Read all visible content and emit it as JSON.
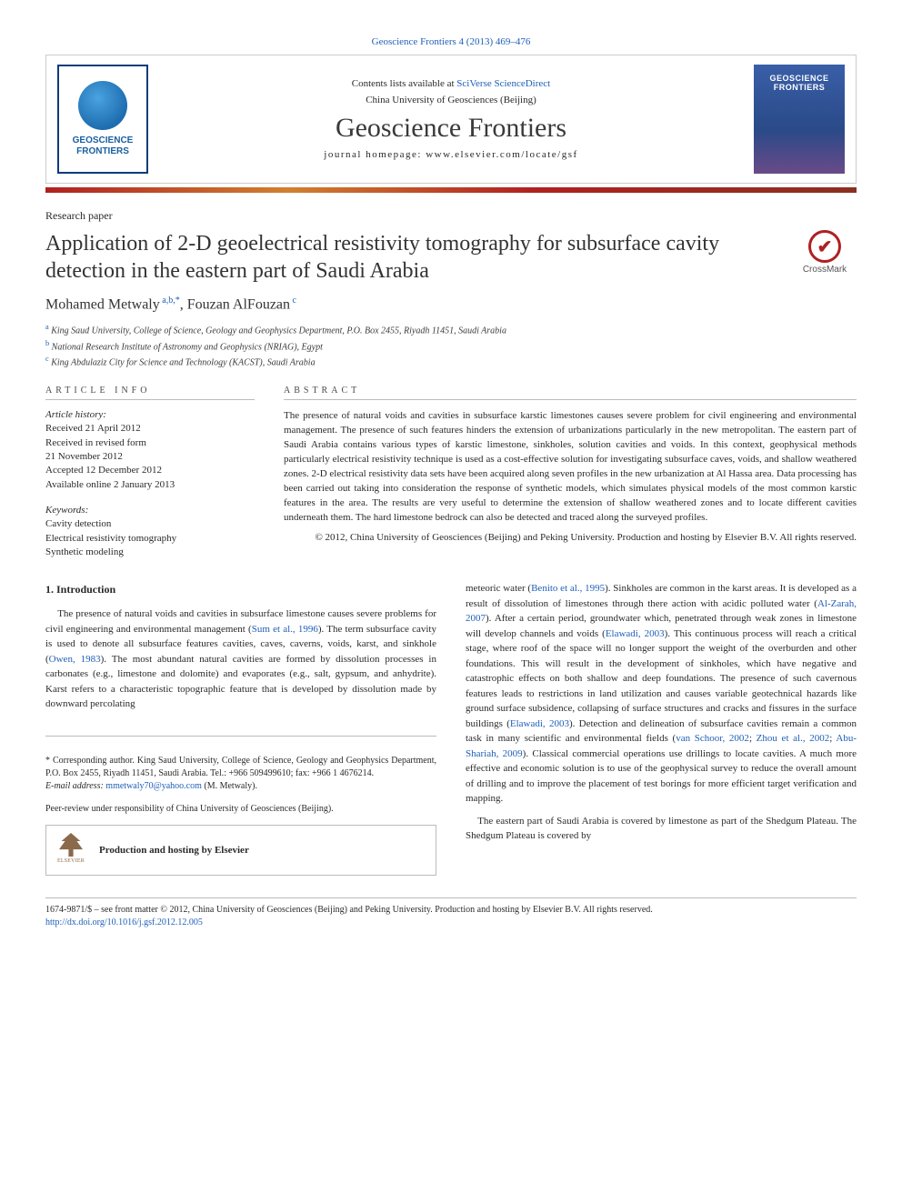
{
  "citation": "Geoscience Frontiers 4 (2013) 469–476",
  "header": {
    "contents_prefix": "Contents lists available at ",
    "contents_link": "SciVerse ScienceDirect",
    "university": "China University of Geosciences (Beijing)",
    "journal_title": "Geoscience Frontiers",
    "homepage": "journal homepage: www.elsevier.com/locate/gsf",
    "logo_left_line1": "GEOSCIENCE",
    "logo_left_line2": "FRONTIERS",
    "logo_right_line1": "GEOSCIENCE",
    "logo_right_line2": "FRONTIERS"
  },
  "colors": {
    "link": "#2060b8",
    "accent_bar_start": "#b02020",
    "accent_bar_mid": "#d08030",
    "text": "#2a2a2a",
    "rule": "#bbbbbb"
  },
  "article": {
    "type": "Research paper",
    "title": "Application of 2-D geoelectrical resistivity tomography for subsurface cavity detection in the eastern part of Saudi Arabia",
    "crossmark_label": "CrossMark",
    "authors_html": "Mohamed Metwaly <sup>a,b,*</sup>, Fouzan AlFouzan <sup>c</sup>",
    "authors_plain": "Mohamed Metwaly a,b,*, Fouzan AlFouzan c",
    "affiliations": [
      {
        "sup": "a",
        "text": "King Saud University, College of Science, Geology and Geophysics Department, P.O. Box 2455, Riyadh 11451, Saudi Arabia"
      },
      {
        "sup": "b",
        "text": "National Research Institute of Astronomy and Geophysics (NRIAG), Egypt"
      },
      {
        "sup": "c",
        "text": "King Abdulaziz City for Science and Technology (KACST), Saudi Arabia"
      }
    ]
  },
  "info": {
    "heading": "ARTICLE INFO",
    "history_label": "Article history:",
    "history": [
      "Received 21 April 2012",
      "Received in revised form",
      "21 November 2012",
      "Accepted 12 December 2012",
      "Available online 2 January 2013"
    ],
    "keywords_label": "Keywords:",
    "keywords": [
      "Cavity detection",
      "Electrical resistivity tomography",
      "Synthetic modeling"
    ]
  },
  "abstract": {
    "heading": "ABSTRACT",
    "text": "The presence of natural voids and cavities in subsurface karstic limestones causes severe problem for civil engineering and environmental management. The presence of such features hinders the extension of urbanizations particularly in the new metropolitan. The eastern part of Saudi Arabia contains various types of karstic limestone, sinkholes, solution cavities and voids. In this context, geophysical methods particularly electrical resistivity technique is used as a cost-effective solution for investigating subsurface caves, voids, and shallow weathered zones. 2-D electrical resistivity data sets have been acquired along seven profiles in the new urbanization at Al Hassa area. Data processing has been carried out taking into consideration the response of synthetic models, which simulates physical models of the most common karstic features in the area. The results are very useful to determine the extension of shallow weathered zones and to locate different cavities underneath them. The hard limestone bedrock can also be detected and traced along the surveyed profiles.",
    "copyright": "© 2012, China University of Geosciences (Beijing) and Peking University. Production and hosting by Elsevier B.V. All rights reserved."
  },
  "body": {
    "intro_heading": "1. Introduction",
    "col1_p1_pre": "The presence of natural voids and cavities in subsurface limestone causes severe problems for civil engineering and environmental management (",
    "col1_ref1": "Sum et al., 1996",
    "col1_p1_mid1": "). The term subsurface cavity is used to denote all subsurface features cavities, caves, caverns, voids, karst, and sinkhole (",
    "col1_ref2": "Owen, 1983",
    "col1_p1_mid2": "). The most abundant natural cavities are formed by dissolution processes in carbonates (e.g., limestone and dolomite) and evaporates (e.g., salt, gypsum, and anhydrite). Karst refers to a characteristic topographic feature that is developed by dissolution made by downward percolating",
    "col2_p1_pre": "meteoric water (",
    "col2_ref1": "Benito et al., 1995",
    "col2_p1_mid1": "). Sinkholes are common in the karst areas. It is developed as a result of dissolution of limestones through there action with acidic polluted water (",
    "col2_ref2": "Al-Zarah, 2007",
    "col2_p1_mid2": "). After a certain period, groundwater which, penetrated through weak zones in limestone will develop channels and voids (",
    "col2_ref3": "Elawadi, 2003",
    "col2_p1_mid3": "). This continuous process will reach a critical stage, where roof of the space will no longer support the weight of the overburden and other foundations. This will result in the development of sinkholes, which have negative and catastrophic effects on both shallow and deep foundations. The presence of such cavernous features leads to restrictions in land utilization and causes variable geotechnical hazards like ground surface subsidence, collapsing of surface structures and cracks and fissures in the surface buildings (",
    "col2_ref4": "Elawadi, 2003",
    "col2_p1_mid4": "). Detection and delineation of subsurface cavities remain a common task in many scientific and environmental fields (",
    "col2_ref5": "van Schoor, 2002",
    "col2_ref5b": "; ",
    "col2_ref6": "Zhou et al., 2002",
    "col2_ref6b": "; ",
    "col2_ref7": "Abu-Shariah, 2009",
    "col2_p1_mid5": "). Classical commercial operations use drillings to locate cavities. A much more effective and economic solution is to use of the geophysical survey to reduce the overall amount of drilling and to improve the placement of test borings for more efficient target verification and mapping.",
    "col2_p2": "The eastern part of Saudi Arabia is covered by limestone as part of the Shedgum Plateau. The Shedgum Plateau is covered by"
  },
  "corresponding": {
    "star": "*",
    "label": " Corresponding author. King Saud University, College of Science, Geology and Geophysics Department, P.O. Box 2455, Riyadh 11451, Saudi Arabia. Tel.: +966 509499610; fax: +966 1 4676214.",
    "email_label": "E-mail address: ",
    "email": "mmetwaly70@yahoo.com",
    "email_suffix": " (M. Metwaly)."
  },
  "peer_review": "Peer-review under responsibility of China University of Geosciences (Beijing).",
  "production_box": {
    "elsevier_label": "ELSEVIER",
    "text": "Production and hosting by Elsevier"
  },
  "footer": {
    "line1": "1674-9871/$ – see front matter © 2012, China University of Geosciences (Beijing) and Peking University. Production and hosting by Elsevier B.V. All rights reserved.",
    "doi": "http://dx.doi.org/10.1016/j.gsf.2012.12.005"
  }
}
